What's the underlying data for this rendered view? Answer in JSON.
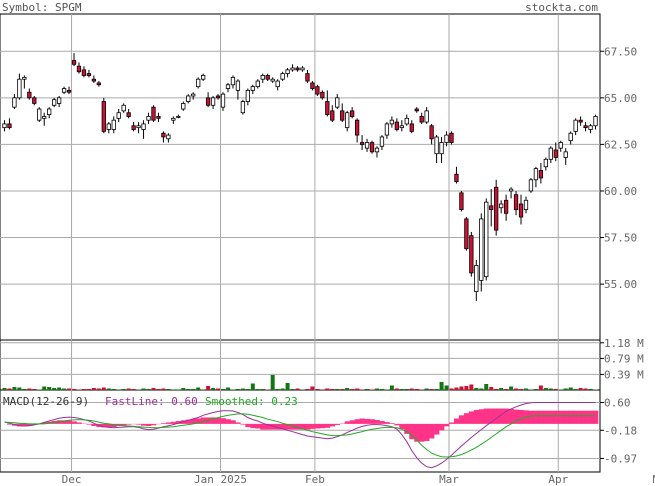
{
  "header": {
    "symbol_label": "Symbol: SPGM",
    "site": "stockta.com"
  },
  "chart_data": {
    "type": "candlestick",
    "price_ticks": [
      "67.50",
      "65.00",
      "62.50",
      "60.00",
      "57.50",
      "55.00"
    ],
    "price_range": [
      52.0,
      69.5
    ],
    "volume_ticks": [
      "1.18 M",
      "0.79 M",
      "0.39 M"
    ],
    "volume_range": [
      0,
      1.25
    ],
    "macd_ticks": [
      "0.60",
      "-0.18",
      "-0.97"
    ],
    "macd_range": [
      -1.35,
      0.95
    ],
    "macd_legend": {
      "title": "MACD(12-26-9)",
      "fast": "FastLine: 0.60",
      "smoothed": "Smoothed: 0.23"
    },
    "month_labels": [
      "Dec",
      "Jan 2025",
      "Feb",
      "Mar",
      "Apr",
      "May"
    ],
    "month_start_index": [
      14,
      44,
      63,
      90,
      112,
      133
    ],
    "colors": {
      "up_fill": "#ffffff",
      "down_fill": "#cc1133",
      "vol_up": "#117711",
      "vol_down": "#cc1133",
      "fast_line": "#993399",
      "smoothed_line": "#22aa22",
      "histogram": "#ff3388",
      "grid": "#aaaaaa"
    },
    "candles": [
      [
        63.4,
        63.8,
        63.2,
        63.6
      ],
      [
        63.6,
        63.9,
        63.3,
        63.4
      ],
      [
        64.5,
        65.2,
        64.4,
        65.0
      ],
      [
        65.0,
        66.3,
        64.9,
        66.0
      ],
      [
        66.0,
        66.2,
        65.5,
        66.1
      ],
      [
        65.3,
        65.5,
        64.9,
        65.0
      ],
      [
        65.0,
        65.1,
        64.6,
        64.7
      ],
      [
        63.8,
        64.5,
        63.7,
        64.4
      ],
      [
        63.9,
        64.2,
        63.5,
        64.0
      ],
      [
        64.1,
        64.5,
        63.9,
        64.4
      ],
      [
        64.6,
        65.0,
        64.5,
        64.9
      ],
      [
        64.7,
        65.1,
        64.5,
        65.0
      ],
      [
        65.3,
        65.6,
        65.2,
        65.5
      ],
      [
        65.4,
        65.6,
        65.2,
        65.3
      ],
      [
        67.0,
        67.4,
        66.7,
        66.8
      ],
      [
        66.7,
        66.9,
        66.3,
        66.4
      ],
      [
        66.5,
        66.7,
        66.1,
        66.2
      ],
      [
        66.3,
        66.5,
        66.1,
        66.2
      ],
      [
        66.0,
        66.2,
        65.8,
        65.9
      ],
      [
        65.8,
        65.9,
        65.6,
        65.7
      ],
      [
        64.8,
        65.0,
        63.1,
        63.2
      ],
      [
        63.3,
        63.7,
        63.1,
        63.6
      ],
      [
        63.3,
        64.0,
        63.1,
        63.8
      ],
      [
        63.9,
        64.4,
        63.7,
        64.2
      ],
      [
        64.3,
        64.7,
        64.2,
        64.6
      ],
      [
        64.2,
        64.4,
        63.9,
        64.0
      ],
      [
        63.5,
        63.7,
        63.2,
        63.3
      ],
      [
        63.4,
        63.7,
        63.1,
        63.5
      ],
      [
        63.3,
        63.8,
        62.8,
        63.6
      ],
      [
        63.8,
        64.2,
        63.6,
        64.0
      ],
      [
        64.5,
        64.6,
        63.7,
        63.8
      ],
      [
        64.0,
        64.2,
        63.7,
        63.9
      ],
      [
        63.1,
        63.2,
        62.6,
        62.9
      ],
      [
        62.8,
        63.1,
        62.6,
        63.0
      ],
      [
        63.8,
        64.0,
        63.6,
        63.9
      ],
      [
        64.0,
        64.1,
        63.9,
        64.0
      ],
      [
        64.4,
        64.8,
        64.3,
        64.7
      ],
      [
        64.8,
        65.2,
        64.7,
        65.1
      ],
      [
        65.1,
        65.3,
        64.9,
        65.2
      ],
      [
        65.6,
        66.1,
        65.5,
        66.0
      ],
      [
        66.0,
        66.3,
        65.9,
        66.2
      ],
      [
        65.0,
        65.3,
        64.5,
        64.6
      ],
      [
        64.6,
        65.1,
        64.4,
        65.0
      ],
      [
        65.1,
        65.2,
        64.9,
        65.0
      ],
      [
        64.5,
        65.3,
        64.3,
        65.2
      ],
      [
        65.5,
        65.8,
        65.3,
        65.7
      ],
      [
        65.7,
        66.2,
        65.5,
        66.1
      ],
      [
        65.4,
        66.0,
        64.9,
        65.9
      ],
      [
        64.2,
        64.9,
        64.1,
        64.8
      ],
      [
        64.8,
        65.5,
        64.6,
        65.4
      ],
      [
        65.4,
        65.7,
        65.2,
        65.6
      ],
      [
        65.6,
        66.0,
        65.5,
        65.9
      ],
      [
        66.0,
        66.3,
        65.8,
        66.2
      ],
      [
        66.2,
        66.3,
        65.9,
        66.0
      ],
      [
        65.9,
        66.1,
        65.8,
        66.0
      ],
      [
        65.6,
        66.0,
        65.4,
        65.9
      ],
      [
        66.0,
        66.4,
        65.9,
        66.3
      ],
      [
        66.3,
        66.6,
        66.1,
        66.5
      ],
      [
        66.5,
        66.8,
        66.4,
        66.6
      ],
      [
        66.6,
        66.7,
        66.4,
        66.5
      ],
      [
        66.5,
        66.7,
        66.4,
        66.6
      ],
      [
        66.3,
        66.5,
        65.8,
        65.9
      ],
      [
        65.8,
        65.9,
        65.4,
        65.5
      ],
      [
        65.6,
        65.7,
        65.1,
        65.2
      ],
      [
        65.3,
        65.4,
        64.9,
        65.0
      ],
      [
        64.8,
        65.4,
        64.0,
        64.1
      ],
      [
        64.3,
        64.6,
        63.7,
        63.8
      ],
      [
        64.5,
        65.2,
        64.4,
        65.0
      ],
      [
        64.3,
        64.7,
        63.7,
        63.8
      ],
      [
        63.4,
        64.3,
        63.2,
        64.2
      ],
      [
        64.3,
        64.5,
        63.9,
        64.0
      ],
      [
        63.8,
        63.9,
        62.6,
        63.0
      ],
      [
        62.6,
        63.0,
        62.2,
        62.5
      ],
      [
        62.3,
        62.8,
        62.1,
        62.6
      ],
      [
        62.6,
        62.7,
        62.0,
        62.1
      ],
      [
        62.1,
        62.4,
        61.8,
        62.3
      ],
      [
        62.4,
        63.0,
        62.2,
        62.9
      ],
      [
        63.0,
        63.7,
        62.8,
        63.6
      ],
      [
        63.6,
        64.0,
        63.4,
        63.8
      ],
      [
        63.7,
        63.9,
        63.2,
        63.3
      ],
      [
        63.4,
        63.8,
        63.2,
        63.5
      ],
      [
        63.6,
        64.1,
        63.5,
        63.9
      ],
      [
        63.6,
        63.8,
        63.1,
        63.2
      ],
      [
        64.4,
        64.5,
        64.2,
        64.3
      ],
      [
        64.0,
        64.2,
        63.6,
        63.7
      ],
      [
        63.7,
        64.5,
        63.6,
        64.3
      ],
      [
        63.5,
        63.6,
        62.5,
        62.8
      ],
      [
        62.0,
        63.0,
        61.5,
        62.9
      ],
      [
        62.0,
        62.9,
        61.5,
        62.6
      ],
      [
        62.6,
        63.2,
        62.4,
        63.0
      ],
      [
        63.1,
        63.2,
        62.5,
        62.6
      ],
      [
        60.9,
        61.3,
        60.4,
        60.5
      ],
      [
        59.9,
        60.0,
        58.9,
        59.0
      ],
      [
        58.5,
        58.6,
        56.8,
        56.9
      ],
      [
        57.6,
        57.8,
        55.4,
        55.6
      ],
      [
        54.6,
        56.3,
        54.1,
        56.0
      ],
      [
        55.2,
        58.8,
        54.6,
        58.5
      ],
      [
        55.4,
        59.6,
        55.2,
        59.4
      ],
      [
        59.2,
        60.1,
        58.1,
        59.0
      ],
      [
        60.2,
        60.6,
        57.6,
        57.9
      ],
      [
        59.1,
        59.5,
        58.8,
        59.3
      ],
      [
        59.5,
        59.8,
        58.4,
        58.8
      ],
      [
        60.0,
        60.2,
        59.6,
        60.1
      ],
      [
        59.8,
        60.0,
        58.7,
        59.0
      ],
      [
        59.3,
        59.8,
        58.2,
        58.6
      ],
      [
        59.0,
        59.7,
        58.8,
        59.5
      ],
      [
        60.0,
        60.7,
        59.9,
        60.6
      ],
      [
        60.6,
        61.3,
        60.2,
        61.2
      ],
      [
        61.1,
        61.5,
        60.4,
        60.7
      ],
      [
        61.3,
        61.8,
        61.1,
        61.7
      ],
      [
        61.7,
        62.4,
        61.5,
        62.3
      ],
      [
        62.2,
        62.6,
        61.6,
        61.8
      ],
      [
        62.3,
        62.7,
        62.1,
        62.6
      ],
      [
        61.8,
        62.3,
        61.4,
        62.1
      ],
      [
        62.7,
        63.2,
        62.5,
        63.1
      ],
      [
        63.2,
        63.9,
        63.0,
        63.8
      ],
      [
        63.8,
        64.0,
        63.5,
        63.7
      ],
      [
        63.5,
        63.7,
        63.2,
        63.4
      ],
      [
        63.3,
        63.6,
        63.1,
        63.5
      ],
      [
        63.5,
        64.1,
        63.3,
        64.0
      ]
    ],
    "volume_pct_of_scale": [
      4,
      3,
      6,
      5,
      2,
      3,
      2,
      1,
      7,
      6,
      4,
      5,
      3,
      3,
      2,
      1,
      2,
      2,
      4,
      3,
      5,
      3,
      2,
      1,
      2,
      3,
      2,
      1,
      3,
      2,
      4,
      2,
      3,
      2,
      1,
      1,
      4,
      2,
      2,
      5,
      1,
      8,
      4,
      3,
      2,
      5,
      1,
      2,
      3,
      2,
      13,
      2,
      2,
      1,
      30,
      2,
      3,
      14,
      2,
      3,
      1,
      2,
      7,
      2,
      1,
      3,
      2,
      2,
      2,
      4,
      2,
      3,
      1,
      2,
      1,
      3,
      2,
      1,
      9,
      3,
      2,
      2,
      3,
      2,
      1,
      3,
      2,
      2,
      16,
      9,
      3,
      5,
      7,
      8,
      11,
      4,
      3,
      12,
      6,
      2,
      4,
      2,
      7,
      3,
      2,
      3,
      1,
      2,
      9,
      4,
      3,
      2,
      1,
      3,
      5,
      2,
      4,
      3,
      2,
      1
    ],
    "macd_fast": [
      0.05,
      0.02,
      -0.02,
      -0.05,
      -0.06,
      -0.05,
      -0.03,
      0.0,
      0.04,
      0.08,
      0.12,
      0.16,
      0.18,
      0.19,
      0.18,
      0.16,
      0.12,
      0.08,
      0.02,
      -0.04,
      -0.08,
      -0.1,
      -0.11,
      -0.1,
      -0.09,
      -0.08,
      -0.08,
      -0.1,
      -0.14,
      -0.16,
      -0.15,
      -0.12,
      -0.08,
      -0.05,
      -0.02,
      0.02,
      0.06,
      0.1,
      0.14,
      0.18,
      0.24,
      0.28,
      0.32,
      0.35,
      0.37,
      0.37,
      0.36,
      0.32,
      0.26,
      0.18,
      0.12,
      0.08,
      0.02,
      -0.03,
      -0.06,
      -0.1,
      -0.14,
      -0.18,
      -0.22,
      -0.26,
      -0.3,
      -0.34,
      -0.36,
      -0.38,
      -0.4,
      -0.42,
      -0.4,
      -0.36,
      -0.31,
      -0.24,
      -0.18,
      -0.12,
      -0.07,
      -0.04,
      -0.02,
      -0.02,
      -0.03,
      -0.05,
      -0.08,
      -0.15,
      -0.3,
      -0.5,
      -0.75,
      -0.95,
      -1.1,
      -1.2,
      -1.23,
      -1.18,
      -1.1,
      -1.0,
      -0.88,
      -0.75,
      -0.62,
      -0.5,
      -0.38,
      -0.27,
      -0.16,
      -0.05,
      0.05,
      0.15,
      0.25,
      0.35,
      0.42,
      0.48,
      0.53,
      0.57,
      0.59,
      0.6,
      0.6,
      0.6,
      0.6,
      0.6,
      0.6,
      0.6,
      0.6,
      0.6,
      0.6,
      0.6,
      0.6,
      0.6
    ],
    "macd_smoothed": [
      0.05,
      0.04,
      0.03,
      0.02,
      0.01,
      0.0,
      0.0,
      0.0,
      0.0,
      0.02,
      0.04,
      0.06,
      0.08,
      0.1,
      0.11,
      0.12,
      0.11,
      0.1,
      0.08,
      0.05,
      0.02,
      0.0,
      -0.02,
      -0.04,
      -0.05,
      -0.06,
      -0.07,
      -0.08,
      -0.09,
      -0.1,
      -0.11,
      -0.11,
      -0.1,
      -0.09,
      -0.08,
      -0.06,
      -0.04,
      -0.02,
      0.0,
      0.03,
      0.06,
      0.1,
      0.14,
      0.18,
      0.21,
      0.24,
      0.26,
      0.28,
      0.28,
      0.27,
      0.24,
      0.21,
      0.18,
      0.13,
      0.1,
      0.06,
      0.02,
      -0.02,
      -0.06,
      -0.1,
      -0.14,
      -0.18,
      -0.22,
      -0.25,
      -0.28,
      -0.31,
      -0.33,
      -0.33,
      -0.32,
      -0.31,
      -0.28,
      -0.25,
      -0.22,
      -0.18,
      -0.15,
      -0.13,
      -0.11,
      -0.1,
      -0.1,
      -0.11,
      -0.15,
      -0.22,
      -0.32,
      -0.45,
      -0.6,
      -0.72,
      -0.82,
      -0.88,
      -0.92,
      -0.93,
      -0.92,
      -0.9,
      -0.86,
      -0.8,
      -0.73,
      -0.66,
      -0.57,
      -0.48,
      -0.38,
      -0.28,
      -0.18,
      -0.08,
      0.0,
      0.08,
      0.14,
      0.19,
      0.22,
      0.23,
      0.23,
      0.23,
      0.23,
      0.23,
      0.23,
      0.23,
      0.23,
      0.23,
      0.23,
      0.23,
      0.23,
      0.23
    ]
  }
}
